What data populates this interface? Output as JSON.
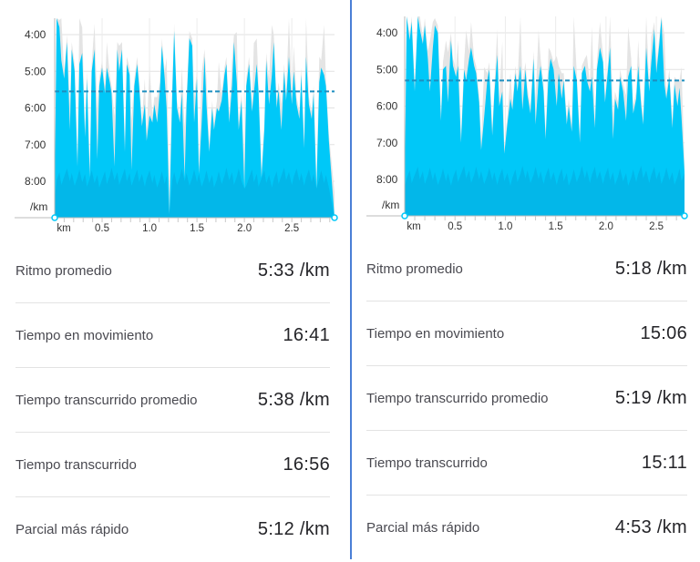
{
  "colors": {
    "pace_fill": "#00c8f8",
    "pace_shadow": "#0a99cf",
    "elevation": "#e4e4e4",
    "avg_line": "#1e8fc0",
    "divider": "#4a7fd6"
  },
  "panels": [
    {
      "chart_data": {
        "type": "area",
        "y_ticks": [
          "4:00",
          "5:00",
          "6:00",
          "7:00",
          "8:00"
        ],
        "y_unit": "/km",
        "x_ticks": [
          "km",
          "0.5",
          "1.0",
          "1.5",
          "2.0",
          "2.5"
        ],
        "xlim": [
          0,
          2.95
        ],
        "ylim_min_per_km": [
          3.5,
          9.0
        ],
        "avg_pace_min_per_km": 5.55,
        "series": [
          {
            "values": [
              [
                0.0,
                8.5
              ],
              [
                0.02,
                3.5
              ],
              [
                0.05,
                3.8
              ],
              [
                0.07,
                4.7
              ],
              [
                0.1,
                5.2
              ],
              [
                0.13,
                4.2
              ],
              [
                0.16,
                6.6
              ],
              [
                0.18,
                4.4
              ],
              [
                0.21,
                5.0
              ],
              [
                0.24,
                7.6
              ],
              [
                0.26,
                4.8
              ],
              [
                0.29,
                4.5
              ],
              [
                0.32,
                6.8
              ],
              [
                0.34,
                5.2
              ],
              [
                0.37,
                7.9
              ],
              [
                0.39,
                5.0
              ],
              [
                0.42,
                4.4
              ],
              [
                0.45,
                7.4
              ],
              [
                0.47,
                5.4
              ],
              [
                0.5,
                4.9
              ],
              [
                0.53,
                5.6
              ],
              [
                0.55,
                4.9
              ],
              [
                0.58,
                5.3
              ],
              [
                0.6,
                5.6
              ],
              [
                0.63,
                7.6
              ],
              [
                0.66,
                4.4
              ],
              [
                0.68,
                5.0
              ],
              [
                0.71,
                4.4
              ],
              [
                0.74,
                7.2
              ],
              [
                0.76,
                4.8
              ],
              [
                0.79,
                5.1
              ],
              [
                0.81,
                7.7
              ],
              [
                0.84,
                5.4
              ],
              [
                0.87,
                4.8
              ],
              [
                0.89,
                5.4
              ],
              [
                0.92,
                6.5
              ],
              [
                0.95,
                5.9
              ],
              [
                0.97,
                6.9
              ],
              [
                1.0,
                6.2
              ],
              [
                1.03,
                6.4
              ],
              [
                1.05,
                5.9
              ],
              [
                1.08,
                6.4
              ],
              [
                1.11,
                5.5
              ],
              [
                1.13,
                4.3
              ],
              [
                1.16,
                5.2
              ],
              [
                1.18,
                6.0
              ],
              [
                1.21,
                8.9
              ],
              [
                1.24,
                5.6
              ],
              [
                1.26,
                3.9
              ],
              [
                1.29,
                6.0
              ],
              [
                1.32,
                6.4
              ],
              [
                1.34,
                5.6
              ],
              [
                1.37,
                7.9
              ],
              [
                1.39,
                5.9
              ],
              [
                1.42,
                4.1
              ],
              [
                1.45,
                4.3
              ],
              [
                1.47,
                6.4
              ],
              [
                1.5,
                5.2
              ],
              [
                1.52,
                7.8
              ],
              [
                1.55,
                6.4
              ],
              [
                1.58,
                4.6
              ],
              [
                1.6,
                5.9
              ],
              [
                1.63,
                7.2
              ],
              [
                1.66,
                6.0
              ],
              [
                1.68,
                6.6
              ],
              [
                1.71,
                6.0
              ],
              [
                1.73,
                6.1
              ],
              [
                1.76,
                5.8
              ],
              [
                1.79,
                5.1
              ],
              [
                1.81,
                4.8
              ],
              [
                1.84,
                6.4
              ],
              [
                1.87,
                5.4
              ],
              [
                1.89,
                4.2
              ],
              [
                1.92,
                5.3
              ],
              [
                1.94,
                6.6
              ],
              [
                1.97,
                5.8
              ],
              [
                2.0,
                8.2
              ],
              [
                2.02,
                5.4
              ],
              [
                2.05,
                4.8
              ],
              [
                2.08,
                6.1
              ],
              [
                2.1,
                5.6
              ],
              [
                2.13,
                4.8
              ],
              [
                2.15,
                5.6
              ],
              [
                2.18,
                7.9
              ],
              [
                2.21,
                6.6
              ],
              [
                2.23,
                4.7
              ],
              [
                2.26,
                5.9
              ],
              [
                2.29,
                5.1
              ],
              [
                2.31,
                4.2
              ],
              [
                2.34,
                6.0
              ],
              [
                2.36,
                5.5
              ],
              [
                2.39,
                6.6
              ],
              [
                2.42,
                5.0
              ],
              [
                2.44,
                5.8
              ],
              [
                2.47,
                4.6
              ],
              [
                2.5,
                5.9
              ],
              [
                2.52,
                5.0
              ],
              [
                2.55,
                5.9
              ],
              [
                2.58,
                6.3
              ],
              [
                2.6,
                5.1
              ],
              [
                2.63,
                7.1
              ],
              [
                2.65,
                4.6
              ],
              [
                2.68,
                5.9
              ],
              [
                2.71,
                6.3
              ],
              [
                2.73,
                5.6
              ],
              [
                2.76,
                8.2
              ],
              [
                2.79,
                5.3
              ],
              [
                2.81,
                4.9
              ],
              [
                2.84,
                5.1
              ],
              [
                2.86,
                5.4
              ],
              [
                2.89,
                6.9
              ],
              [
                2.95,
                9.0
              ]
            ]
          }
        ]
      },
      "stats": [
        {
          "label": "Ritmo promedio",
          "value": "5:33 /km"
        },
        {
          "label": "Tiempo en movimiento",
          "value": "16:41"
        },
        {
          "label": "Tiempo transcurrido promedio",
          "value": "5:38 /km"
        },
        {
          "label": "Tiempo transcurrido",
          "value": "16:56"
        },
        {
          "label": "Parcial más rápido",
          "value": "5:12 /km"
        }
      ]
    },
    {
      "chart_data": {
        "type": "area",
        "y_ticks": [
          "4:00",
          "5:00",
          "6:00",
          "7:00",
          "8:00"
        ],
        "y_unit": "/km",
        "x_ticks": [
          "km",
          "0.5",
          "1.0",
          "1.5",
          "2.0",
          "2.5"
        ],
        "xlim": [
          0,
          2.78
        ],
        "ylim_min_per_km": [
          3.5,
          9.0
        ],
        "avg_pace_min_per_km": 5.3,
        "series": [
          {
            "values": [
              [
                0.0,
                8.2
              ],
              [
                0.02,
                3.4
              ],
              [
                0.05,
                4.2
              ],
              [
                0.07,
                3.7
              ],
              [
                0.1,
                5.6
              ],
              [
                0.13,
                3.5
              ],
              [
                0.15,
                3.9
              ],
              [
                0.18,
                4.3
              ],
              [
                0.2,
                3.8
              ],
              [
                0.23,
                4.7
              ],
              [
                0.25,
                5.6
              ],
              [
                0.28,
                4.4
              ],
              [
                0.3,
                3.8
              ],
              [
                0.33,
                4.0
              ],
              [
                0.36,
                6.4
              ],
              [
                0.38,
                5.0
              ],
              [
                0.41,
                4.9
              ],
              [
                0.43,
                5.9
              ],
              [
                0.46,
                4.2
              ],
              [
                0.48,
                4.9
              ],
              [
                0.51,
                5.2
              ],
              [
                0.53,
                4.9
              ],
              [
                0.56,
                7.0
              ],
              [
                0.59,
                5.0
              ],
              [
                0.61,
                5.3
              ],
              [
                0.64,
                4.7
              ],
              [
                0.66,
                4.4
              ],
              [
                0.69,
                4.9
              ],
              [
                0.71,
                5.1
              ],
              [
                0.74,
                5.9
              ],
              [
                0.76,
                7.2
              ],
              [
                0.79,
                6.3
              ],
              [
                0.82,
                5.3
              ],
              [
                0.84,
                5.0
              ],
              [
                0.87,
                6.8
              ],
              [
                0.89,
                5.7
              ],
              [
                0.92,
                4.6
              ],
              [
                0.94,
                6.0
              ],
              [
                0.97,
                5.6
              ],
              [
                0.99,
                7.3
              ],
              [
                1.02,
                6.5
              ],
              [
                1.05,
                5.8
              ],
              [
                1.07,
                6.1
              ],
              [
                1.1,
                5.1
              ],
              [
                1.12,
                5.6
              ],
              [
                1.15,
                4.9
              ],
              [
                1.17,
                6.1
              ],
              [
                1.2,
                5.0
              ],
              [
                1.22,
                5.7
              ],
              [
                1.25,
                6.2
              ],
              [
                1.28,
                4.7
              ],
              [
                1.3,
                6.5
              ],
              [
                1.33,
                5.3
              ],
              [
                1.35,
                4.9
              ],
              [
                1.38,
                5.6
              ],
              [
                1.4,
                6.9
              ],
              [
                1.43,
                5.1
              ],
              [
                1.45,
                4.7
              ],
              [
                1.48,
                5.0
              ],
              [
                1.51,
                6.0
              ],
              [
                1.53,
                5.1
              ],
              [
                1.56,
                5.8
              ],
              [
                1.58,
                5.3
              ],
              [
                1.61,
                6.5
              ],
              [
                1.63,
                6.0
              ],
              [
                1.66,
                6.7
              ],
              [
                1.68,
                4.9
              ],
              [
                1.71,
                5.3
              ],
              [
                1.74,
                7.0
              ],
              [
                1.76,
                5.1
              ],
              [
                1.79,
                4.9
              ],
              [
                1.81,
                5.3
              ],
              [
                1.84,
                5.6
              ],
              [
                1.86,
                5.2
              ],
              [
                1.89,
                6.6
              ],
              [
                1.91,
                5.0
              ],
              [
                1.94,
                4.4
              ],
              [
                1.97,
                4.8
              ],
              [
                1.99,
                5.9
              ],
              [
                2.02,
                5.0
              ],
              [
                2.04,
                4.4
              ],
              [
                2.07,
                6.9
              ],
              [
                2.09,
                5.8
              ],
              [
                2.12,
                6.1
              ],
              [
                2.14,
                5.2
              ],
              [
                2.17,
                5.6
              ],
              [
                2.2,
                6.4
              ],
              [
                2.22,
                5.2
              ],
              [
                2.25,
                4.9
              ],
              [
                2.27,
                6.2
              ],
              [
                2.3,
                5.8
              ],
              [
                2.32,
                4.9
              ],
              [
                2.35,
                6.0
              ],
              [
                2.37,
                6.5
              ],
              [
                2.4,
                4.4
              ],
              [
                2.43,
                5.6
              ],
              [
                2.45,
                4.8
              ],
              [
                2.48,
                3.9
              ],
              [
                2.5,
                5.1
              ],
              [
                2.53,
                4.3
              ],
              [
                2.55,
                3.6
              ],
              [
                2.58,
                5.4
              ],
              [
                2.6,
                5.8
              ],
              [
                2.63,
                5.2
              ],
              [
                2.66,
                6.6
              ],
              [
                2.68,
                5.4
              ],
              [
                2.71,
                6.0
              ],
              [
                2.73,
                5.5
              ],
              [
                2.75,
                6.3
              ],
              [
                2.78,
                7.8
              ]
            ]
          }
        ]
      },
      "stats": [
        {
          "label": "Ritmo promedio",
          "value": "5:18 /km"
        },
        {
          "label": "Tiempo en movimiento",
          "value": "15:06"
        },
        {
          "label": "Tiempo transcurrido promedio",
          "value": "5:19 /km"
        },
        {
          "label": "Tiempo transcurrido",
          "value": "15:11"
        },
        {
          "label": "Parcial más rápido",
          "value": "4:53 /km"
        }
      ]
    }
  ]
}
